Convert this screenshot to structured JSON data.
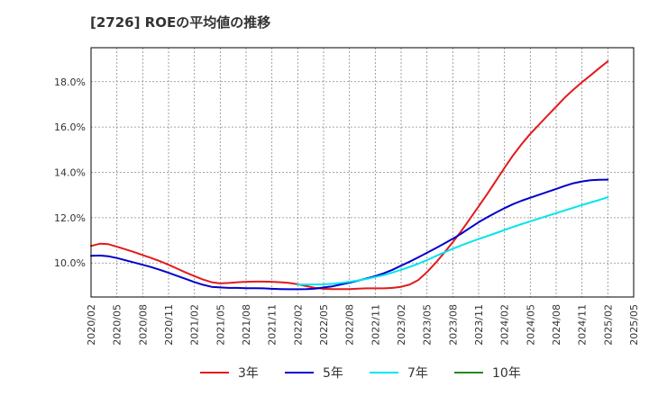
{
  "chart_data": {
    "type": "line",
    "title": "[2726]  ROEの平均値の推移",
    "xlabel": "",
    "ylabel": "",
    "x_ticks": [
      "2020/02",
      "2020/05",
      "2020/08",
      "2020/11",
      "2021/02",
      "2021/05",
      "2021/08",
      "2021/11",
      "2022/02",
      "2022/05",
      "2022/08",
      "2022/11",
      "2023/02",
      "2023/05",
      "2023/08",
      "2023/11",
      "2024/02",
      "2024/05",
      "2024/08",
      "2024/11",
      "2025/02",
      "2025/05"
    ],
    "y_ticks": [
      10.0,
      12.0,
      14.0,
      16.0,
      18.0
    ],
    "y_tick_labels": [
      "10.0%",
      "12.0%",
      "14.0%",
      "16.0%",
      "18.0%"
    ],
    "ylim": [
      8.5,
      19.5
    ],
    "grid": true,
    "legend_position": "bottom",
    "series": [
      {
        "name": "3年",
        "color": "#e31a1c",
        "x": [
          "2020/02",
          "2020/03",
          "2020/04",
          "2020/05",
          "2020/06",
          "2020/07",
          "2020/08",
          "2020/09",
          "2020/10",
          "2020/11",
          "2020/12",
          "2021/01",
          "2021/02",
          "2021/03",
          "2021/04",
          "2021/05",
          "2021/06",
          "2021/07",
          "2021/08",
          "2021/09",
          "2021/10",
          "2021/11",
          "2021/12",
          "2022/01",
          "2022/02",
          "2022/03",
          "2022/04",
          "2022/05",
          "2022/06",
          "2022/07",
          "2022/08",
          "2022/09",
          "2022/10",
          "2022/11",
          "2022/12",
          "2023/01",
          "2023/02",
          "2023/03",
          "2023/04",
          "2023/05",
          "2023/06",
          "2023/07",
          "2023/08",
          "2023/09",
          "2023/10",
          "2023/11",
          "2023/12",
          "2024/01",
          "2024/02",
          "2024/03",
          "2024/04",
          "2024/05",
          "2024/06",
          "2024/07",
          "2024/08",
          "2024/09",
          "2024/10",
          "2024/11",
          "2024/12",
          "2025/01",
          "2025/02"
        ],
        "values": [
          10.75,
          10.85,
          10.83,
          10.72,
          10.6,
          10.48,
          10.35,
          10.22,
          10.08,
          9.92,
          9.75,
          9.58,
          9.42,
          9.27,
          9.15,
          9.1,
          9.12,
          9.15,
          9.17,
          9.18,
          9.18,
          9.17,
          9.15,
          9.12,
          9.06,
          8.98,
          8.9,
          8.86,
          8.85,
          8.85,
          8.85,
          8.87,
          8.88,
          8.88,
          8.88,
          8.9,
          8.95,
          9.05,
          9.25,
          9.6,
          10.0,
          10.45,
          10.92,
          11.42,
          11.95,
          12.5,
          13.05,
          13.62,
          14.2,
          14.75,
          15.25,
          15.7,
          16.1,
          16.5,
          16.9,
          17.3,
          17.65,
          17.98,
          18.28,
          18.6,
          18.9
        ]
      },
      {
        "name": "5年",
        "color": "#0000cc",
        "x": [
          "2020/02",
          "2020/03",
          "2020/04",
          "2020/05",
          "2020/06",
          "2020/07",
          "2020/08",
          "2020/09",
          "2020/10",
          "2020/11",
          "2020/12",
          "2021/01",
          "2021/02",
          "2021/03",
          "2021/04",
          "2021/05",
          "2021/06",
          "2021/07",
          "2021/08",
          "2021/09",
          "2021/10",
          "2021/11",
          "2021/12",
          "2022/01",
          "2022/02",
          "2022/03",
          "2022/04",
          "2022/05",
          "2022/06",
          "2022/07",
          "2022/08",
          "2022/09",
          "2022/10",
          "2022/11",
          "2022/12",
          "2023/01",
          "2023/02",
          "2023/03",
          "2023/04",
          "2023/05",
          "2023/06",
          "2023/07",
          "2023/08",
          "2023/09",
          "2023/10",
          "2023/11",
          "2023/12",
          "2024/01",
          "2024/02",
          "2024/03",
          "2024/04",
          "2024/05",
          "2024/06",
          "2024/07",
          "2024/08",
          "2024/09",
          "2024/10",
          "2024/11",
          "2024/12",
          "2025/01",
          "2025/02"
        ],
        "values": [
          10.32,
          10.33,
          10.3,
          10.22,
          10.12,
          10.02,
          9.92,
          9.82,
          9.7,
          9.57,
          9.43,
          9.3,
          9.16,
          9.04,
          8.95,
          8.92,
          8.9,
          8.9,
          8.89,
          8.89,
          8.88,
          8.86,
          8.85,
          8.84,
          8.84,
          8.85,
          8.87,
          8.92,
          8.97,
          9.05,
          9.13,
          9.22,
          9.32,
          9.42,
          9.55,
          9.7,
          9.88,
          10.06,
          10.25,
          10.45,
          10.65,
          10.86,
          11.07,
          11.3,
          11.55,
          11.8,
          12.02,
          12.22,
          12.42,
          12.6,
          12.75,
          12.88,
          13.01,
          13.14,
          13.27,
          13.4,
          13.52,
          13.6,
          13.65,
          13.67,
          13.68
        ]
      },
      {
        "name": "7年",
        "color": "#00e5ee",
        "x": [
          "2022/02",
          "2022/03",
          "2022/04",
          "2022/05",
          "2022/06",
          "2022/07",
          "2022/08",
          "2022/09",
          "2022/10",
          "2022/11",
          "2022/12",
          "2023/01",
          "2023/02",
          "2023/03",
          "2023/04",
          "2023/05",
          "2023/06",
          "2023/07",
          "2023/08",
          "2023/09",
          "2023/10",
          "2023/11",
          "2023/12",
          "2024/01",
          "2024/02",
          "2024/03",
          "2024/04",
          "2024/05",
          "2024/06",
          "2024/07",
          "2024/08",
          "2024/09",
          "2024/10",
          "2024/11",
          "2024/12",
          "2025/01",
          "2025/02"
        ],
        "values": [
          9.05,
          9.05,
          9.05,
          9.06,
          9.08,
          9.12,
          9.17,
          9.23,
          9.3,
          9.38,
          9.47,
          9.58,
          9.7,
          9.83,
          9.97,
          10.13,
          10.3,
          10.47,
          10.63,
          10.78,
          10.92,
          11.06,
          11.19,
          11.32,
          11.46,
          11.59,
          11.72,
          11.84,
          11.96,
          12.08,
          12.2,
          12.32,
          12.44,
          12.56,
          12.67,
          12.78,
          12.9
        ]
      },
      {
        "name": "10年",
        "color": "#228b22",
        "x": [],
        "values": []
      }
    ]
  }
}
